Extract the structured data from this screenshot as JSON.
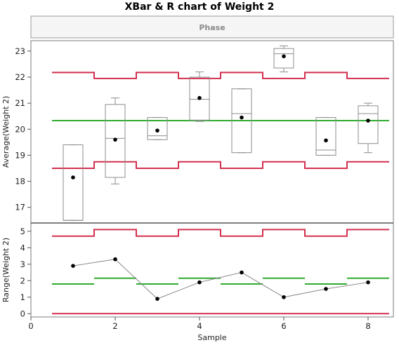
{
  "title": "XBar & R chart of Weight 2",
  "phase_label": "Phase",
  "colors": {
    "limit": "#d2304f",
    "center": "#2eaa2e",
    "box": "#8c8c8c",
    "point": "#000000",
    "frame": "#7a7a7a"
  },
  "chart_data": [
    {
      "type": "control-xbar",
      "ylabel": "Average(Weight 2)",
      "ylim": [
        16.4,
        23.4
      ],
      "yticks": [
        17,
        18,
        19,
        20,
        21,
        22,
        23
      ],
      "xlim": [
        0,
        8.6
      ],
      "center_line": 20.33,
      "ucl": [
        22.18,
        21.95,
        22.18,
        21.95,
        22.18,
        21.95,
        22.18,
        21.95
      ],
      "lcl": [
        18.5,
        18.75,
        18.5,
        18.75,
        18.5,
        18.75,
        18.5,
        18.75
      ],
      "samples": [
        1,
        2,
        3,
        4,
        5,
        6,
        7,
        8
      ],
      "means": [
        18.15,
        19.6,
        19.95,
        21.2,
        20.45,
        22.8,
        19.57,
        20.33
      ],
      "boxes": [
        {
          "min": 16.5,
          "q1": 16.5,
          "median": 16.5,
          "q3": 19.4,
          "max": 19.4
        },
        {
          "min": 17.9,
          "q1": 18.15,
          "median": 19.65,
          "q3": 20.95,
          "max": 21.2
        },
        {
          "min": 19.6,
          "q1": 19.6,
          "median": 19.75,
          "q3": 20.45,
          "max": 20.45
        },
        {
          "min": 20.3,
          "q1": 20.35,
          "median": 21.15,
          "q3": 22.0,
          "max": 22.2
        },
        {
          "min": 19.1,
          "q1": 19.1,
          "median": 20.6,
          "q3": 21.55,
          "max": 21.55
        },
        {
          "min": 22.2,
          "q1": 22.35,
          "median": 22.9,
          "q3": 23.1,
          "max": 23.2
        },
        {
          "min": 19.0,
          "q1": 19.0,
          "median": 19.2,
          "q3": 20.45,
          "max": 20.45
        },
        {
          "min": 19.1,
          "q1": 19.45,
          "median": 20.6,
          "q3": 20.9,
          "max": 21.0
        }
      ]
    },
    {
      "type": "control-range",
      "ylabel": "Range(Weight 2)",
      "xlabel": "Sample",
      "ylim": [
        -0.2,
        5.5
      ],
      "yticks": [
        0,
        1,
        2,
        3,
        4,
        5
      ],
      "xlim": [
        0,
        8.6
      ],
      "xticks": [
        0,
        2,
        4,
        6,
        8
      ],
      "ucl": [
        4.7,
        5.1,
        4.7,
        5.1,
        4.7,
        5.1,
        4.7,
        5.1
      ],
      "center": [
        1.8,
        2.15,
        1.8,
        2.15,
        1.8,
        2.15,
        1.8,
        2.15
      ],
      "lcl": [
        0,
        0,
        0,
        0,
        0,
        0,
        0,
        0
      ],
      "samples": [
        1,
        2,
        3,
        4,
        5,
        6,
        7,
        8
      ],
      "ranges": [
        2.9,
        3.3,
        0.9,
        1.9,
        2.5,
        1.0,
        1.5,
        1.9
      ]
    }
  ]
}
